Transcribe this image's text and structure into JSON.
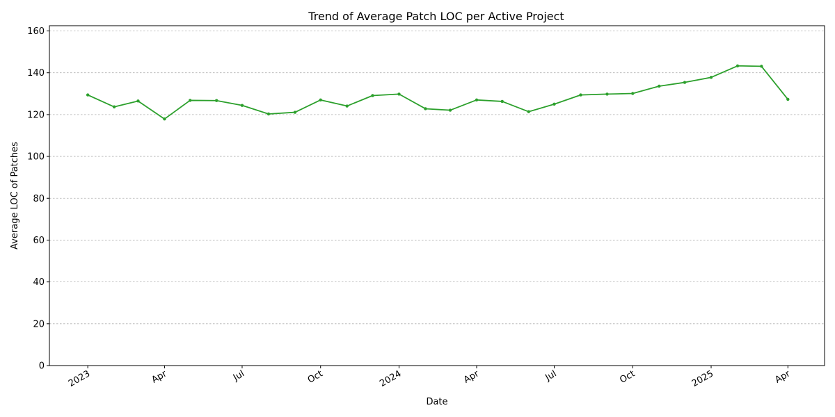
{
  "chart_data": {
    "type": "line",
    "title": "Trend of Average Patch LOC per Active Project",
    "xlabel": "Date",
    "ylabel": "Average LOC of Patches",
    "xlim": [
      "2022-11-17",
      "2025-05-14"
    ],
    "ylim": [
      0,
      162.5
    ],
    "grid": "horizontal",
    "line_color": "#2ca02c",
    "x_ticks": [
      {
        "date": "2023-01-01",
        "label": "2023"
      },
      {
        "date": "2023-04-01",
        "label": "Apr"
      },
      {
        "date": "2023-07-01",
        "label": "Jul"
      },
      {
        "date": "2023-10-01",
        "label": "Oct"
      },
      {
        "date": "2024-01-01",
        "label": "2024"
      },
      {
        "date": "2024-04-01",
        "label": "Apr"
      },
      {
        "date": "2024-07-01",
        "label": "Jul"
      },
      {
        "date": "2024-10-01",
        "label": "Oct"
      },
      {
        "date": "2025-01-01",
        "label": "2025"
      },
      {
        "date": "2025-04-01",
        "label": "Apr"
      }
    ],
    "y_ticks": [
      {
        "value": 0,
        "label": "0"
      },
      {
        "value": 20,
        "label": "20"
      },
      {
        "value": 40,
        "label": "40"
      },
      {
        "value": 60,
        "label": "60"
      },
      {
        "value": 80,
        "label": "80"
      },
      {
        "value": 100,
        "label": "100"
      },
      {
        "value": 120,
        "label": "120"
      },
      {
        "value": 140,
        "label": "140"
      },
      {
        "value": 160,
        "label": "160"
      }
    ],
    "series": [
      {
        "x": [
          "2023-01-01",
          "2023-02-01",
          "2023-03-01",
          "2023-04-01",
          "2023-05-01",
          "2023-06-01",
          "2023-07-01",
          "2023-08-01",
          "2023-09-01",
          "2023-10-01",
          "2023-11-01",
          "2023-12-01",
          "2024-01-01",
          "2024-02-01",
          "2024-03-01",
          "2024-04-01",
          "2024-05-01",
          "2024-06-01",
          "2024-07-01",
          "2024-08-01",
          "2024-09-01",
          "2024-10-01",
          "2024-11-01",
          "2024-12-01",
          "2025-01-01",
          "2025-02-01",
          "2025-03-01",
          "2025-04-01"
        ],
        "values": [
          129.4,
          123.7,
          126.5,
          117.9,
          126.8,
          126.7,
          124.4,
          120.3,
          121.1,
          127.0,
          124.1,
          129.1,
          129.8,
          122.8,
          122.1,
          127.0,
          126.3,
          121.4,
          125.0,
          129.4,
          129.8,
          130.1,
          133.6,
          135.4,
          137.8,
          143.3,
          143.1,
          127.3
        ]
      }
    ]
  }
}
